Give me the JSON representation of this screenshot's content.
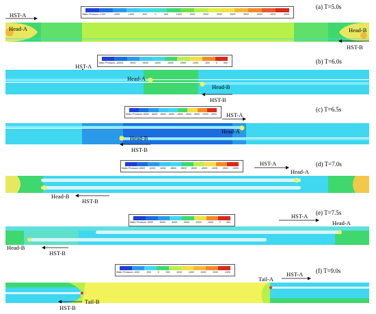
{
  "legend_title": "Static Pressure",
  "panels": [
    {
      "tag": "(a)  T=5.0s",
      "labels": {
        "hst_a": "HST-A",
        "head_a": "Head-A",
        "head_b": "Head-B",
        "hst_b": "HST-B"
      },
      "legend_ticks": [
        "-1700",
        "-1500",
        "-1000",
        "-500",
        "0",
        "500",
        "1000",
        "1500",
        "2000",
        "2500",
        "3000",
        "3500",
        "4000",
        "4200",
        "4300"
      ]
    },
    {
      "tag": "(b)  T=6.0s",
      "labels": {
        "hst_a": "HST-A",
        "head_a": "Head-A",
        "head_b": "Head-B",
        "hst_b": "HST-B"
      },
      "legend_ticks": [
        "-10000",
        "-9500",
        "-9000",
        "-5000",
        "-4500",
        "-2500",
        "-1000",
        "-500",
        "0",
        "500"
      ]
    },
    {
      "tag": "(c)  T=6.5s",
      "labels": {
        "hst_a": "HST-A",
        "head_a": "Head-A",
        "head_b": "Head-B",
        "hst_b": "HST-B"
      },
      "legend_ticks": [
        "-6500",
        "-6000",
        "-5500",
        "-5000",
        "-4500",
        "-4000",
        "-3500",
        "-3000",
        "-2500"
      ]
    },
    {
      "tag": "(d)  T=7.0s",
      "labels": {
        "hst_a": "HST-A",
        "head_a": "Head-A",
        "head_b": "Head-B",
        "hst_b": "HST-B"
      },
      "legend_ticks": [
        "-6500",
        "-6200",
        "-6000",
        "-5800",
        "-5500",
        "-5000",
        "-4500",
        "-4000",
        "-3500",
        "-3000"
      ]
    },
    {
      "tag": "(e)  T=7.5s",
      "labels": {
        "hst_a": "HST-A",
        "head_a": "Head-A",
        "head_b": "Head-B",
        "hst_b": "HST-B"
      },
      "legend_ticks": [
        "-6000",
        "-5000",
        "-4000",
        "-3000",
        "-2000",
        "-1000",
        "0",
        "500"
      ]
    },
    {
      "tag": "(f)  T=9.0s",
      "labels": {
        "hst_a": "HST-A",
        "tail_a": "Tail-A",
        "tail_b": "Tail-B",
        "hst_b": "HST-B"
      },
      "legend_ticks": [
        "-1000",
        "-500",
        "0",
        "500",
        "1000",
        "1500",
        "2000",
        "2200",
        "2300"
      ]
    }
  ],
  "colors": {
    "blue": "#1a6fe0",
    "cyan": "#3fd8f0",
    "light_cyan": "#7fe8f8",
    "green": "#3fd86f",
    "yellow_green": "#b8f04a",
    "yellow": "#f2f25a",
    "orange": "#f2a23a",
    "red": "#e83a2a",
    "train": "#d8f4fb"
  }
}
